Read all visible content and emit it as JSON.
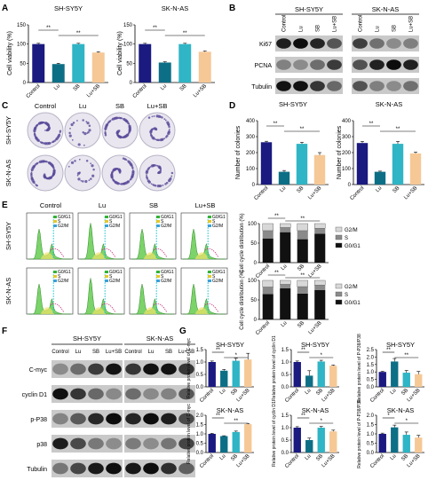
{
  "colors": {
    "Control": "#1a1a80",
    "Lu": "#0d6f86",
    "SB": "#2fb5c5",
    "Lu+SB": "#f6c896",
    "g2m": "#d8d8d8",
    "s": "#8a8a8a",
    "g0g1": "#111111",
    "blot_bg": "#c9c9c9"
  },
  "groups": [
    "Control",
    "Lu",
    "SB",
    "Lu+SB"
  ],
  "panels": {
    "A": {
      "label": "A",
      "ylabel": "Cell viability (%)",
      "charts": [
        {
          "title": "SH-SY5Y",
          "values": [
            100,
            48,
            100,
            78
          ],
          "errors": [
            2,
            2,
            2,
            2
          ],
          "ylim": [
            0,
            150
          ],
          "ticks": [
            0,
            50,
            100,
            150
          ],
          "sig": [
            [
              "Control",
              "Lu",
              "**"
            ],
            [
              "Lu",
              "Lu+SB",
              "**"
            ]
          ]
        },
        {
          "title": "SK-N-AS",
          "values": [
            100,
            52,
            100,
            80
          ],
          "errors": [
            2,
            2,
            2,
            2
          ],
          "ylim": [
            0,
            150
          ],
          "ticks": [
            0,
            50,
            100,
            150
          ],
          "sig": [
            [
              "Control",
              "Lu",
              "**"
            ],
            [
              "Lu",
              "Lu+SB",
              "**"
            ]
          ]
        }
      ]
    },
    "B": {
      "label": "B",
      "cell_lines": [
        "SH-SY5Y",
        "SK-N-AS"
      ],
      "groups": [
        "Control",
        "Lu",
        "SB",
        "Lu+SB"
      ],
      "rows": [
        "Ki67",
        "PCNA",
        "Tubulin"
      ]
    },
    "C": {
      "label": "C",
      "groups": [
        "Control",
        "Lu",
        "SB",
        "Lu+SB"
      ],
      "cell_lines": [
        "SH-SY5Y",
        "SK-N-AS"
      ]
    },
    "D": {
      "label": "D",
      "ylabel": "Number of colonies",
      "charts": [
        {
          "title": "SH-SY5Y",
          "values": [
            265,
            80,
            255,
            185
          ],
          "errors": [
            6,
            8,
            10,
            15
          ],
          "ylim": [
            0,
            400
          ],
          "ticks": [
            0,
            100,
            200,
            300,
            400
          ],
          "sig": [
            [
              "Control",
              "Lu",
              "**"
            ],
            [
              "Lu",
              "Lu+SB",
              "**"
            ]
          ]
        },
        {
          "title": "SK-N-AS",
          "values": [
            260,
            80,
            255,
            195
          ],
          "errors": [
            10,
            4,
            15,
            8
          ],
          "ylim": [
            0,
            400
          ],
          "ticks": [
            0,
            100,
            200,
            300,
            400
          ],
          "sig": [
            [
              "Control",
              "Lu",
              "**"
            ],
            [
              "Lu",
              "Lu+SB",
              "**"
            ]
          ]
        }
      ]
    },
    "E": {
      "label": "E",
      "groups": [
        "Control",
        "Lu",
        "SB",
        "Lu+SB"
      ],
      "cell_lines": [
        "SH-SY5Y",
        "SK-N-AS"
      ],
      "histogram_legend": [
        "G0/G1",
        "S",
        "G2/M"
      ],
      "ylabel": "Cell cycle distribution (%)",
      "stack_legend": [
        "G2/M",
        "S",
        "G0/G1"
      ],
      "charts": [
        {
          "g0g1": [
            62,
            78,
            60,
            74
          ],
          "s": [
            20,
            12,
            22,
            14
          ],
          "g2m": [
            18,
            10,
            18,
            12
          ],
          "ylim": [
            0,
            100
          ],
          "ticks": [
            0,
            50,
            100
          ],
          "sig": [
            [
              "Control",
              "Lu",
              "**"
            ],
            [
              "Lu",
              "Lu+SB",
              "**"
            ]
          ]
        },
        {
          "g0g1": [
            65,
            80,
            66,
            75
          ],
          "s": [
            18,
            10,
            18,
            13
          ],
          "g2m": [
            17,
            10,
            16,
            12
          ],
          "ylim": [
            0,
            100
          ],
          "ticks": [
            0,
            50,
            100
          ],
          "sig": [
            [
              "Control",
              "Lu",
              "**"
            ],
            [
              "Lu",
              "Lu+SB",
              "**"
            ]
          ]
        }
      ]
    },
    "F": {
      "label": "F",
      "cell_lines": [
        "SH-SY5Y",
        "SK-N-AS"
      ],
      "groups": [
        "Control",
        "Lu",
        "SB",
        "Lu+SB"
      ],
      "rows": [
        "C-myc",
        "cyclin D1",
        "p-P38",
        "p38",
        "Tubulin"
      ]
    },
    "G": {
      "label": "G",
      "charts": [
        {
          "title": "SH-SY5Y",
          "ylabel": "Relative protein level of C-myc",
          "values": [
            1.0,
            0.65,
            1.05,
            1.1
          ],
          "errors": [
            0.04,
            0.05,
            0.1,
            0.25
          ],
          "ylim": [
            0,
            1.5
          ],
          "ticks": [
            "0.0",
            "0.5",
            "1.0",
            "1.5"
          ],
          "sig": [
            [
              "Control",
              "Lu",
              "**"
            ],
            [
              "Lu",
              "Lu+SB",
              "*"
            ]
          ]
        },
        {
          "title": "SH-SY5Y",
          "ylabel": "Relative protein level of cyclin D1",
          "values": [
            1.0,
            0.45,
            1.02,
            0.85
          ],
          "errors": [
            0.04,
            0.2,
            0.05,
            0.03
          ],
          "ylim": [
            0,
            1.5
          ],
          "ticks": [
            "0.0",
            "0.5",
            "1.0",
            "1.5"
          ],
          "sig": [
            [
              "Control",
              "Lu",
              "**"
            ],
            [
              "Lu",
              "Lu+SB",
              "*"
            ]
          ]
        },
        {
          "title": "SH-SY5Y",
          "ylabel": "Relative protein level of P-P38/P38",
          "values": [
            1.0,
            1.7,
            0.95,
            0.85
          ],
          "errors": [
            0.04,
            0.2,
            0.15,
            0.18
          ],
          "ylim": [
            0,
            2.5
          ],
          "ticks": [
            "0.0",
            "0.5",
            "1.0",
            "1.5",
            "2.0",
            "2.5"
          ],
          "sig": [
            [
              "Control",
              "Lu",
              "**"
            ],
            [
              "Lu",
              "Lu+SB",
              "**"
            ]
          ]
        },
        {
          "title": "SK-N-AS",
          "ylabel": "Relative protein level of C-myc",
          "values": [
            1.0,
            0.88,
            1.1,
            1.52
          ],
          "errors": [
            0.03,
            0.02,
            0.05,
            0.04
          ],
          "ylim": [
            0,
            2.0
          ],
          "ticks": [
            "0.0",
            "0.5",
            "1.0",
            "1.5",
            "2.0"
          ],
          "sig": [
            [
              "Control",
              "Lu",
              "**"
            ],
            [
              "Lu",
              "Lu+SB",
              "**"
            ]
          ]
        },
        {
          "title": "SK-N-AS",
          "ylabel": "Relative protein level of cyclin D1",
          "values": [
            1.0,
            0.5,
            1.0,
            0.85
          ],
          "errors": [
            0.04,
            0.08,
            0.05,
            0.05
          ],
          "ylim": [
            0,
            1.5
          ],
          "ticks": [
            "0.0",
            "0.5",
            "1.0",
            "1.5"
          ],
          "sig": [
            [
              "Control",
              "Lu",
              "**"
            ],
            [
              "Lu",
              "Lu+SB",
              "*"
            ]
          ]
        },
        {
          "title": "SK-N-AS",
          "ylabel": "Relative protein level of P-P38/P38",
          "values": [
            1.0,
            1.35,
            0.95,
            0.8
          ],
          "errors": [
            0.04,
            0.12,
            0.15,
            0.12
          ],
          "ylim": [
            0,
            2.0
          ],
          "ticks": [
            "0.0",
            "0.5",
            "1.0",
            "1.5",
            "2.0"
          ],
          "sig": [
            [
              "Control",
              "Lu",
              "*"
            ],
            [
              "Lu",
              "Lu+SB",
              "*"
            ]
          ]
        }
      ]
    }
  },
  "chart_data": [
    {
      "type": "bar",
      "title": "SH-SY5Y",
      "ylabel": "Cell viability (%)",
      "categories": [
        "Control",
        "Lu",
        "SB",
        "Lu+SB"
      ],
      "values": [
        100,
        48,
        100,
        78
      ],
      "ylim": [
        0,
        150
      ]
    },
    {
      "type": "bar",
      "title": "SK-N-AS",
      "ylabel": "Cell viability (%)",
      "categories": [
        "Control",
        "Lu",
        "SB",
        "Lu+SB"
      ],
      "values": [
        100,
        52,
        100,
        80
      ],
      "ylim": [
        0,
        150
      ]
    },
    {
      "type": "bar",
      "title": "SH-SY5Y",
      "ylabel": "Number of colonies",
      "categories": [
        "Control",
        "Lu",
        "SB",
        "Lu+SB"
      ],
      "values": [
        265,
        80,
        255,
        185
      ],
      "ylim": [
        0,
        400
      ]
    },
    {
      "type": "bar",
      "title": "SK-N-AS",
      "ylabel": "Number of colonies",
      "categories": [
        "Control",
        "Lu",
        "SB",
        "Lu+SB"
      ],
      "values": [
        260,
        80,
        255,
        195
      ],
      "ylim": [
        0,
        400
      ]
    },
    {
      "type": "bar",
      "ylabel": "Cell cycle distribution (%)",
      "categories": [
        "Control",
        "Lu",
        "SB",
        "Lu+SB"
      ],
      "series": [
        {
          "name": "G0/G1",
          "values": [
            62,
            78,
            60,
            74
          ]
        },
        {
          "name": "S",
          "values": [
            20,
            12,
            22,
            14
          ]
        },
        {
          "name": "G2/M",
          "values": [
            18,
            10,
            18,
            12
          ]
        }
      ],
      "ylim": [
        0,
        100
      ]
    },
    {
      "type": "bar",
      "ylabel": "Cell cycle distribution (%)",
      "categories": [
        "Control",
        "Lu",
        "SB",
        "Lu+SB"
      ],
      "series": [
        {
          "name": "G0/G1",
          "values": [
            65,
            80,
            66,
            75
          ]
        },
        {
          "name": "S",
          "values": [
            18,
            10,
            18,
            13
          ]
        },
        {
          "name": "G2/M",
          "values": [
            17,
            10,
            16,
            12
          ]
        }
      ],
      "ylim": [
        0,
        100
      ]
    },
    {
      "type": "bar",
      "title": "SH-SY5Y",
      "ylabel": "Relative protein level of C-myc",
      "categories": [
        "Control",
        "Lu",
        "SB",
        "Lu+SB"
      ],
      "values": [
        1.0,
        0.65,
        1.05,
        1.1
      ],
      "ylim": [
        0,
        1.5
      ]
    },
    {
      "type": "bar",
      "title": "SH-SY5Y",
      "ylabel": "Relative protein level of cyclin D1",
      "categories": [
        "Control",
        "Lu",
        "SB",
        "Lu+SB"
      ],
      "values": [
        1.0,
        0.45,
        1.02,
        0.85
      ],
      "ylim": [
        0,
        1.5
      ]
    },
    {
      "type": "bar",
      "title": "SH-SY5Y",
      "ylabel": "Relative protein level of P-P38/P38",
      "categories": [
        "Control",
        "Lu",
        "SB",
        "Lu+SB"
      ],
      "values": [
        1.0,
        1.7,
        0.95,
        0.85
      ],
      "ylim": [
        0,
        2.5
      ]
    },
    {
      "type": "bar",
      "title": "SK-N-AS",
      "ylabel": "Relative protein level of C-myc",
      "categories": [
        "Control",
        "Lu",
        "SB",
        "Lu+SB"
      ],
      "values": [
        1.0,
        0.88,
        1.1,
        1.52
      ],
      "ylim": [
        0,
        2.0
      ]
    },
    {
      "type": "bar",
      "title": "SK-N-AS",
      "ylabel": "Relative protein level of cyclin D1",
      "categories": [
        "Control",
        "Lu",
        "SB",
        "Lu+SB"
      ],
      "values": [
        1.0,
        0.5,
        1.0,
        0.85
      ],
      "ylim": [
        0,
        1.5
      ]
    },
    {
      "type": "bar",
      "title": "SK-N-AS",
      "ylabel": "Relative protein level of P-P38/P38",
      "categories": [
        "Control",
        "Lu",
        "SB",
        "Lu+SB"
      ],
      "values": [
        1.0,
        1.35,
        0.95,
        0.8
      ],
      "ylim": [
        0,
        2.0
      ]
    }
  ]
}
